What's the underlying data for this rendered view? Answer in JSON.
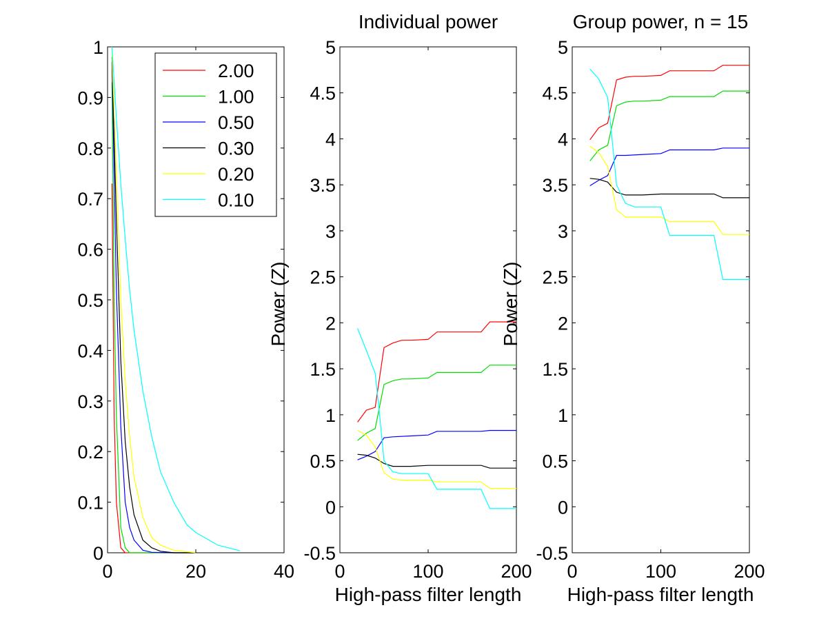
{
  "figure": {
    "colors": {
      "2.00": "#ff0000",
      "1.00": "#00dd00",
      "0.50": "#0000ff",
      "0.30": "#000000",
      "0.20": "#ffff00",
      "0.10": "#00ffff"
    }
  },
  "chart_data": [
    {
      "type": "line",
      "title": "",
      "xlabel": "",
      "ylabel": "",
      "xlim": [
        0,
        40
      ],
      "ylim": [
        0,
        1
      ],
      "xticks": [
        "0",
        "20",
        "40"
      ],
      "yticks": [
        "0",
        "0.1",
        "0.2",
        "0.3",
        "0.4",
        "0.5",
        "0.6",
        "0.7",
        "0.8",
        "0.9",
        "1"
      ],
      "legend": {
        "placement": "top-right",
        "entries": [
          "2.00",
          "1.00",
          "0.50",
          "0.30",
          "0.20",
          "0.10"
        ]
      },
      "series": [
        {
          "name": "2.00",
          "color": "#ff0000",
          "x": [
            1,
            1.5,
            2,
            3,
            4,
            5,
            8,
            20
          ],
          "y": [
            0.73,
            0.27,
            0.1,
            0.01,
            0.0,
            0.0,
            0.0,
            0.0
          ]
        },
        {
          "name": "1.00",
          "color": "#00dd00",
          "x": [
            1,
            1.5,
            2,
            3,
            4,
            5,
            8,
            20
          ],
          "y": [
            0.93,
            0.5,
            0.27,
            0.05,
            0.01,
            0.0,
            0.0,
            0.0
          ]
        },
        {
          "name": "0.50",
          "color": "#0000ff",
          "x": [
            1,
            2,
            3,
            4,
            5,
            6,
            8,
            10,
            15,
            20
          ],
          "y": [
            0.97,
            0.52,
            0.25,
            0.1,
            0.05,
            0.025,
            0.005,
            0.001,
            0.0,
            0.0
          ]
        },
        {
          "name": "0.30",
          "color": "#000000",
          "x": [
            1,
            2,
            3,
            4,
            5,
            6,
            8,
            10,
            12,
            15,
            20
          ],
          "y": [
            0.98,
            0.66,
            0.38,
            0.22,
            0.13,
            0.075,
            0.025,
            0.01,
            0.003,
            0.0,
            0.0
          ]
        },
        {
          "name": "0.20",
          "color": "#ffff00",
          "x": [
            1,
            2,
            3,
            4,
            5,
            6,
            8,
            10,
            12,
            15,
            20
          ],
          "y": [
            0.99,
            0.75,
            0.5,
            0.34,
            0.23,
            0.15,
            0.07,
            0.03,
            0.015,
            0.005,
            0.0
          ]
        },
        {
          "name": "0.10",
          "color": "#00ffff",
          "x": [
            1,
            2,
            3,
            4,
            5,
            6,
            8,
            10,
            12,
            15,
            18,
            20,
            25,
            30
          ],
          "y": [
            1.0,
            0.86,
            0.73,
            0.62,
            0.52,
            0.44,
            0.32,
            0.23,
            0.16,
            0.1,
            0.055,
            0.04,
            0.015,
            0.004
          ]
        }
      ]
    },
    {
      "type": "line",
      "title": "Individual power",
      "xlabel": "High-pass filter length",
      "ylabel": "Power (Z)",
      "xlim": [
        0,
        200
      ],
      "ylim": [
        -0.5,
        5
      ],
      "xticks": [
        "0",
        "100",
        "200"
      ],
      "yticks": [
        "-0.5",
        "0",
        "0.5",
        "1",
        "1.5",
        "2",
        "2.5",
        "3",
        "3.5",
        "4",
        "4.5",
        "5"
      ],
      "series": [
        {
          "name": "2.00",
          "color": "#ff0000",
          "x": [
            20,
            30,
            40,
            50,
            60,
            70,
            80,
            100,
            110,
            120,
            160,
            170,
            200
          ],
          "y": [
            0.92,
            1.05,
            1.08,
            1.73,
            1.78,
            1.81,
            1.81,
            1.82,
            1.9,
            1.9,
            1.9,
            2.01,
            2.01
          ]
        },
        {
          "name": "1.00",
          "color": "#00dd00",
          "x": [
            20,
            30,
            40,
            50,
            60,
            70,
            80,
            100,
            110,
            120,
            160,
            170,
            200
          ],
          "y": [
            0.72,
            0.8,
            0.85,
            1.33,
            1.37,
            1.39,
            1.39,
            1.4,
            1.46,
            1.46,
            1.46,
            1.54,
            1.54
          ]
        },
        {
          "name": "0.50",
          "color": "#0000ff",
          "x": [
            20,
            30,
            40,
            50,
            60,
            80,
            100,
            110,
            160,
            170,
            200
          ],
          "y": [
            0.51,
            0.55,
            0.6,
            0.75,
            0.76,
            0.77,
            0.78,
            0.82,
            0.82,
            0.83,
            0.83
          ]
        },
        {
          "name": "0.30",
          "color": "#000000",
          "x": [
            20,
            30,
            40,
            50,
            60,
            80,
            100,
            110,
            160,
            170,
            200
          ],
          "y": [
            0.57,
            0.56,
            0.53,
            0.47,
            0.44,
            0.44,
            0.45,
            0.45,
            0.45,
            0.42,
            0.42
          ]
        },
        {
          "name": "0.20",
          "color": "#ffff00",
          "x": [
            20,
            30,
            40,
            50,
            60,
            70,
            100,
            110,
            160,
            170,
            200
          ],
          "y": [
            0.83,
            0.78,
            0.65,
            0.37,
            0.3,
            0.29,
            0.29,
            0.27,
            0.27,
            0.2,
            0.2
          ]
        },
        {
          "name": "0.10",
          "color": "#00ffff",
          "x": [
            20,
            30,
            40,
            45,
            50,
            60,
            70,
            100,
            110,
            160,
            170,
            200
          ],
          "y": [
            1.94,
            1.7,
            1.45,
            1.0,
            0.5,
            0.38,
            0.36,
            0.36,
            0.19,
            0.19,
            -0.02,
            -0.02
          ]
        }
      ]
    },
    {
      "type": "line",
      "title": "Group power, n = 15",
      "xlabel": "High-pass filter length",
      "ylabel": "Power (Z)",
      "xlim": [
        0,
        200
      ],
      "ylim": [
        -0.5,
        5
      ],
      "xticks": [
        "0",
        "100",
        "200"
      ],
      "yticks": [
        "-0.5",
        "0",
        "0.5",
        "1",
        "1.5",
        "2",
        "2.5",
        "3",
        "3.5",
        "4",
        "4.5",
        "5"
      ],
      "series": [
        {
          "name": "2.00",
          "color": "#ff0000",
          "x": [
            20,
            30,
            40,
            50,
            60,
            70,
            80,
            100,
            110,
            120,
            160,
            170,
            200
          ],
          "y": [
            3.99,
            4.12,
            4.17,
            4.64,
            4.67,
            4.68,
            4.68,
            4.69,
            4.74,
            4.74,
            4.74,
            4.8,
            4.8
          ]
        },
        {
          "name": "1.00",
          "color": "#00dd00",
          "x": [
            20,
            30,
            40,
            50,
            60,
            70,
            80,
            100,
            110,
            120,
            160,
            170,
            200
          ],
          "y": [
            3.76,
            3.88,
            3.93,
            4.36,
            4.4,
            4.41,
            4.41,
            4.42,
            4.46,
            4.46,
            4.46,
            4.52,
            4.52
          ]
        },
        {
          "name": "0.50",
          "color": "#0000ff",
          "x": [
            20,
            30,
            40,
            50,
            60,
            80,
            100,
            110,
            160,
            170,
            200
          ],
          "y": [
            3.49,
            3.55,
            3.6,
            3.82,
            3.82,
            3.83,
            3.84,
            3.88,
            3.88,
            3.9,
            3.9
          ]
        },
        {
          "name": "0.30",
          "color": "#000000",
          "x": [
            20,
            30,
            40,
            50,
            60,
            80,
            100,
            110,
            160,
            170,
            200
          ],
          "y": [
            3.57,
            3.56,
            3.53,
            3.42,
            3.39,
            3.39,
            3.4,
            3.4,
            3.4,
            3.36,
            3.36
          ]
        },
        {
          "name": "0.20",
          "color": "#ffff00",
          "x": [
            20,
            30,
            40,
            50,
            60,
            70,
            100,
            110,
            160,
            170,
            200
          ],
          "y": [
            3.92,
            3.85,
            3.7,
            3.23,
            3.15,
            3.15,
            3.15,
            3.1,
            3.1,
            2.96,
            2.96
          ]
        },
        {
          "name": "0.10",
          "color": "#00ffff",
          "x": [
            20,
            30,
            40,
            45,
            50,
            60,
            70,
            100,
            110,
            160,
            170,
            200
          ],
          "y": [
            4.76,
            4.65,
            4.45,
            4.0,
            3.5,
            3.3,
            3.26,
            3.26,
            2.95,
            2.95,
            2.47,
            2.47
          ]
        }
      ]
    }
  ]
}
